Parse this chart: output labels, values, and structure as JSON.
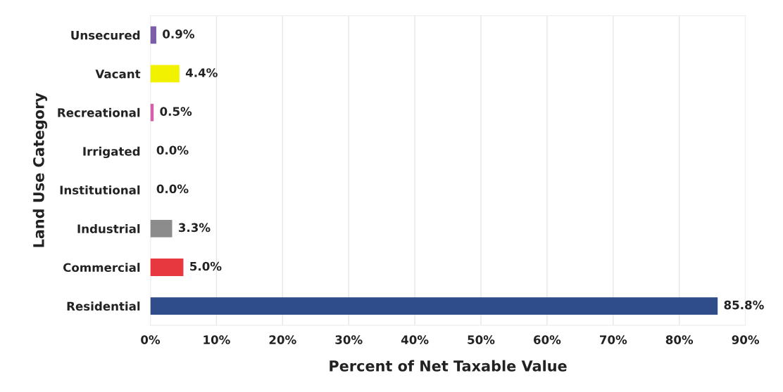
{
  "chart_data": {
    "type": "bar",
    "orientation": "horizontal",
    "xlabel": "Percent of Net Taxable Value",
    "ylabel": "Land Use Category",
    "categories": [
      "Unsecured",
      "Vacant",
      "Recreational",
      "Irrigated",
      "Institutional",
      "Industrial",
      "Commercial",
      "Residential"
    ],
    "values": [
      0.9,
      4.4,
      0.5,
      0.0,
      0.0,
      3.3,
      5.0,
      85.8
    ],
    "colors": [
      "#7b5ea7",
      "#f2f200",
      "#d45faa",
      "#3a3a3a",
      "#4a7fb0",
      "#8c8c8c",
      "#e8383f",
      "#2e4d8a"
    ],
    "value_labels": [
      "0.9%",
      "4.4%",
      "0.5%",
      "0.0%",
      "0.0%",
      "3.3%",
      "5.0%",
      "85.8%"
    ],
    "xlim": [
      0,
      90
    ],
    "xticks": [
      {
        "value": 0,
        "label": "0%"
      },
      {
        "value": 10,
        "label": "10%"
      },
      {
        "value": 20,
        "label": "20%"
      },
      {
        "value": 30,
        "label": "30%"
      },
      {
        "value": 40,
        "label": "40%"
      },
      {
        "value": 50,
        "label": "50%"
      },
      {
        "value": 60,
        "label": "60%"
      },
      {
        "value": 70,
        "label": "70%"
      },
      {
        "value": 80,
        "label": "80%"
      },
      {
        "value": 90,
        "label": "90%"
      }
    ],
    "grid": "x",
    "legend": false
  }
}
